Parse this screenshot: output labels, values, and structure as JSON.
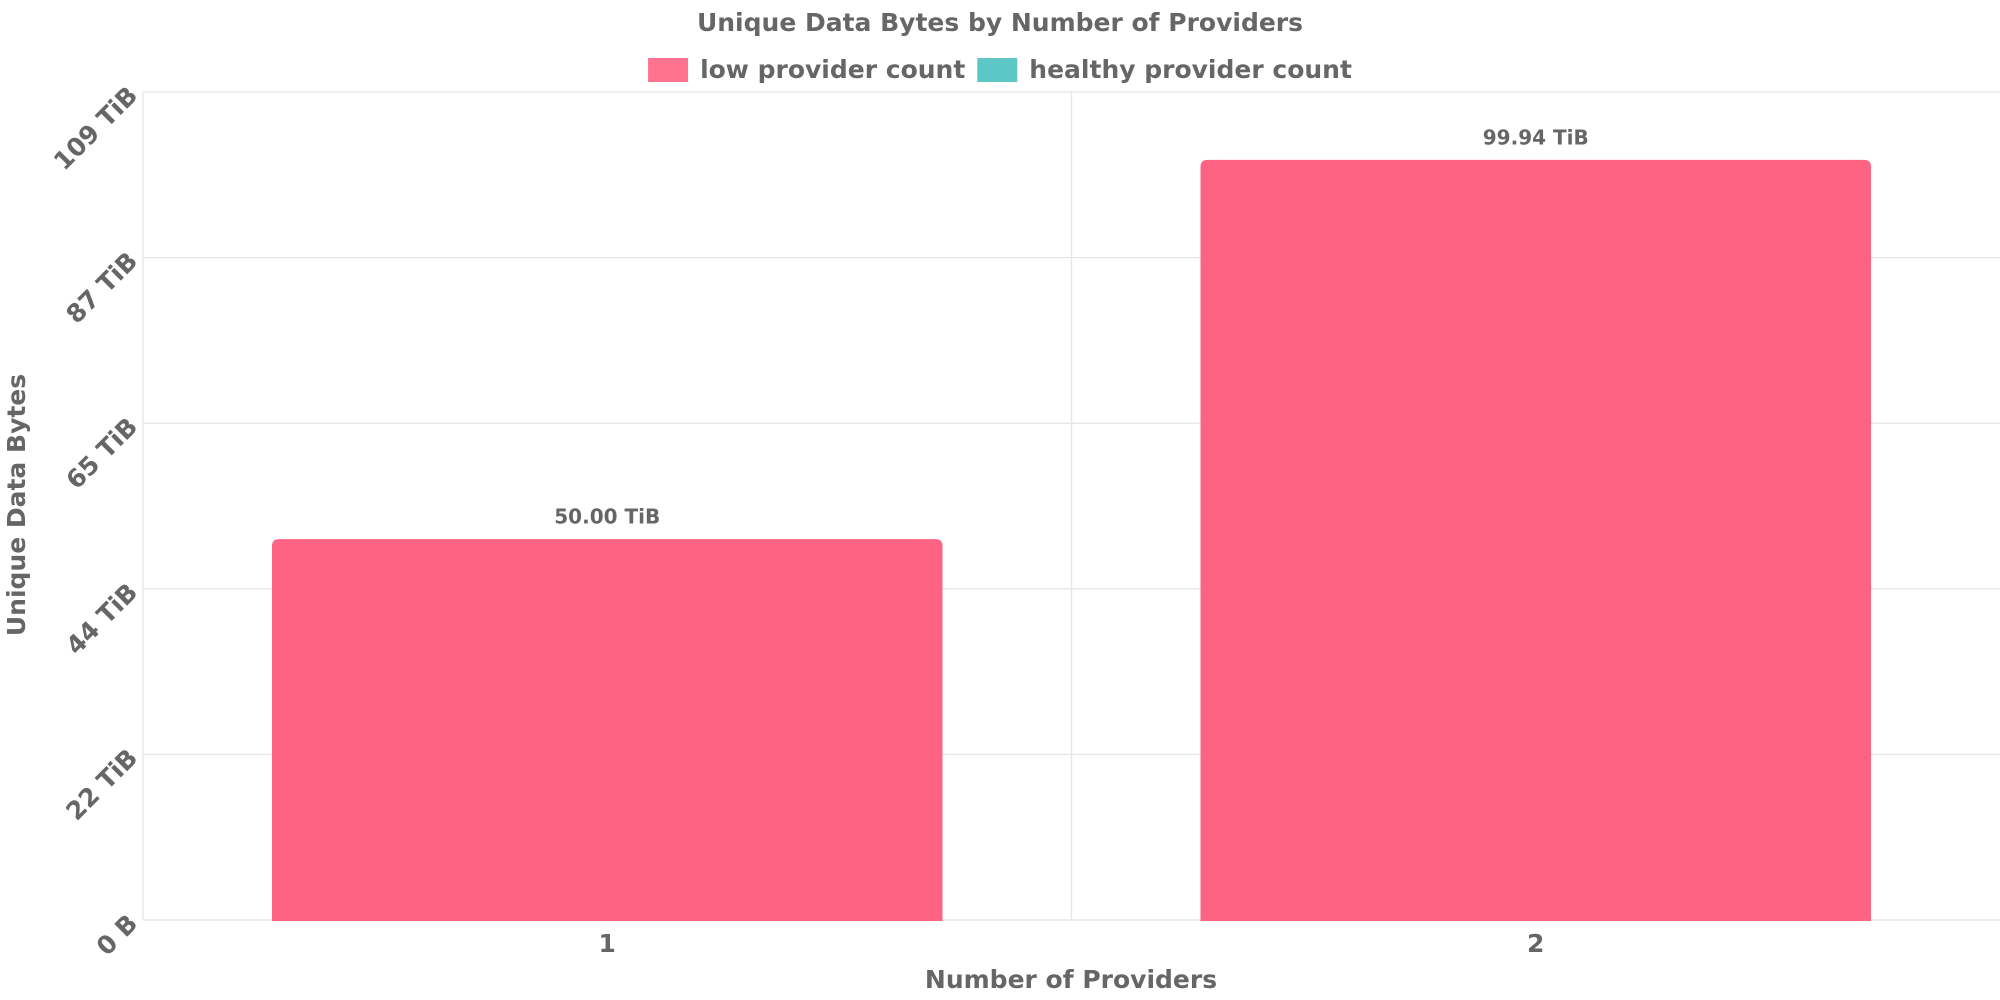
{
  "chart_data": {
    "type": "bar",
    "title": "Unique Data Bytes by Number of Providers",
    "x_label": "Number of Providers",
    "y_label": "Unique Data Bytes",
    "categories": [
      "1",
      "2"
    ],
    "series": [
      {
        "name": "low provider count",
        "color": "#ff6384",
        "values": [
          50,
          99.94
        ],
        "value_labels": [
          "50.00 TiB",
          "99.94 TiB"
        ]
      },
      {
        "name": "healthy provider count",
        "color": "#4bc0c0",
        "values": [
          null,
          null
        ]
      }
    ],
    "ylim": [
      0,
      109
    ],
    "yticks": [
      {
        "value": 0,
        "label": "0 B"
      },
      {
        "value": 21.8,
        "label": "22 TiB"
      },
      {
        "value": 43.6,
        "label": "44 TiB"
      },
      {
        "value": 65.4,
        "label": "65 TiB"
      },
      {
        "value": 87.2,
        "label": "87 TiB"
      },
      {
        "value": 109,
        "label": "109 TiB"
      }
    ],
    "grid": true,
    "legend": "top"
  }
}
